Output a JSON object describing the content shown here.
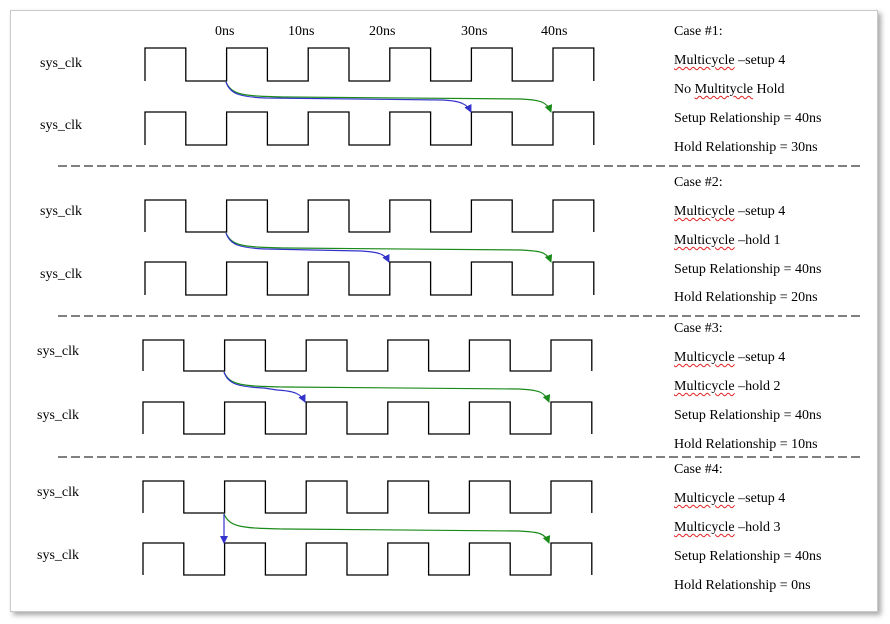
{
  "time_labels": [
    "0ns",
    "10ns",
    "20ns",
    "30ns",
    "40ns"
  ],
  "signal_label": "sys_clk",
  "colors": {
    "setup_arrow": "#1a8a1a",
    "hold_arrow": "#3333cc",
    "waveform": "#000000",
    "separator": "#000000"
  },
  "cases": [
    {
      "title": "Case #1:",
      "line1_word": "Multicycle",
      "line1_rest": " –setup  4",
      "line2_prefix": "No ",
      "line2_word": "Multitycle",
      "line2_rest": " Hold",
      "setup_rel": "Setup Relationship = 40ns",
      "hold_rel": "Hold Relationship = 30ns"
    },
    {
      "title": "Case #2:",
      "line1_word": "Multicycle",
      "line1_rest": " –setup  4",
      "line2_prefix": "",
      "line2_word": "Multicycle",
      "line2_rest": " –hold 1",
      "setup_rel": "Setup Relationship = 40ns",
      "hold_rel": "Hold Relationship = 20ns"
    },
    {
      "title": "Case #3:",
      "line1_word": "Multicycle",
      "line1_rest": " –setup  4",
      "line2_prefix": "",
      "line2_word": "Multicycle",
      "line2_rest": " –hold 2",
      "setup_rel": "Setup Relationship = 40ns",
      "hold_rel": "Hold Relationship = 10ns"
    },
    {
      "title": "Case #4:",
      "line1_word": "Multicycle",
      "line1_rest": " –setup  4",
      "line2_prefix": "",
      "line2_word": "Multicycle",
      "line2_rest": " –hold 3",
      "setup_rel": "Setup Relationship = 40ns",
      "hold_rel": "Hold Relationship = 0ns"
    }
  ]
}
